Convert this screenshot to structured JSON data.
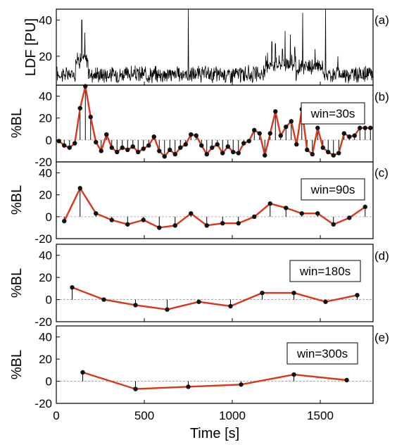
{
  "x_axis": {
    "label": "Time [s]",
    "range": [
      0,
      1800
    ],
    "ticks": [
      0,
      500,
      1000,
      1500
    ],
    "tick_labels": [
      "0",
      "500",
      "1000",
      "1500"
    ]
  },
  "colors": {
    "line": "#d9361a",
    "marker": "#111111",
    "trace": "#000000",
    "zero_line": "#999999"
  },
  "chart_data": [
    {
      "panel": "(a)",
      "type": "line",
      "ylabel": "LDF [PU]",
      "ylim": [
        4,
        46
      ],
      "yticks": [
        20,
        40
      ],
      "baseline_mean": 10,
      "noise_amplitude": 3.5,
      "dense_regions": [
        {
          "x_range": [
            110,
            180
          ],
          "level": 18
        },
        {
          "x_range": [
            1190,
            1360
          ],
          "level": 16
        },
        {
          "x_range": [
            1380,
            1520
          ],
          "level": 14
        }
      ],
      "spikes": [
        {
          "x": 145,
          "y": 40
        },
        {
          "x": 162,
          "y": 33
        },
        {
          "x": 750,
          "y": 46
        },
        {
          "x": 1200,
          "y": 22
        },
        {
          "x": 1225,
          "y": 28
        },
        {
          "x": 1245,
          "y": 27
        },
        {
          "x": 1285,
          "y": 24
        },
        {
          "x": 1300,
          "y": 34
        },
        {
          "x": 1330,
          "y": 32
        },
        {
          "x": 1355,
          "y": 25
        },
        {
          "x": 1400,
          "y": 44
        },
        {
          "x": 1470,
          "y": 24
        },
        {
          "x": 1530,
          "y": 46
        },
        {
          "x": 1600,
          "y": 20
        }
      ]
    },
    {
      "panel": "(b)",
      "type": "line",
      "window": "win=30s",
      "ylabel": "%BL",
      "ylim": [
        -20,
        50
      ],
      "yticks": [
        -20,
        0,
        20,
        40
      ],
      "x": [
        15,
        45,
        75,
        105,
        135,
        165,
        195,
        225,
        255,
        285,
        315,
        345,
        375,
        405,
        435,
        465,
        495,
        525,
        555,
        585,
        615,
        645,
        675,
        705,
        735,
        765,
        795,
        825,
        855,
        885,
        915,
        945,
        975,
        1005,
        1035,
        1065,
        1095,
        1125,
        1155,
        1185,
        1215,
        1245,
        1275,
        1305,
        1335,
        1365,
        1395,
        1425,
        1455,
        1485,
        1515,
        1545,
        1575,
        1605,
        1635,
        1665,
        1695,
        1725,
        1755,
        1785
      ],
      "values": [
        -1,
        -5,
        -7,
        -3,
        29,
        49,
        21,
        -2,
        -10,
        5,
        -7,
        -11,
        -7,
        -9,
        -6,
        -11,
        -8,
        -5,
        3,
        -10,
        -15,
        -9,
        -13,
        -7,
        -4,
        5,
        4,
        -5,
        -13,
        -7,
        -4,
        -12,
        -6,
        -11,
        -12,
        -3,
        -1,
        9,
        6,
        -14,
        6,
        26,
        4,
        12,
        17,
        -4,
        28,
        -9,
        -13,
        11,
        -7,
        -11,
        -14,
        -12,
        6,
        3,
        4,
        11,
        11,
        11
      ]
    },
    {
      "panel": "(c)",
      "type": "line",
      "window": "win=90s",
      "ylabel": "%BL",
      "ylim": [
        -20,
        50
      ],
      "yticks": [
        -20,
        0,
        20,
        40
      ],
      "x": [
        45,
        135,
        225,
        315,
        405,
        495,
        585,
        675,
        765,
        855,
        945,
        1035,
        1125,
        1215,
        1305,
        1395,
        1485,
        1575,
        1665,
        1755
      ],
      "values": [
        -4,
        26,
        3,
        -3,
        -7,
        -3,
        -10,
        -8,
        3,
        -8,
        -6,
        -6,
        0,
        12,
        8,
        3,
        3,
        -7,
        -1,
        9
      ]
    },
    {
      "panel": "(d)",
      "type": "line",
      "window": "win=180s",
      "ylabel": "%BL",
      "ylim": [
        -20,
        50
      ],
      "yticks": [
        -20,
        0,
        20,
        40
      ],
      "x": [
        90,
        270,
        450,
        630,
        810,
        990,
        1170,
        1350,
        1530,
        1710
      ],
      "values": [
        11,
        0,
        -5,
        -9,
        -2,
        -6,
        6,
        6,
        -2,
        4
      ]
    },
    {
      "panel": "(e)",
      "type": "line",
      "window": "win=300s",
      "ylabel": "%BL",
      "ylim": [
        -20,
        50
      ],
      "yticks": [
        -20,
        0,
        20,
        40
      ],
      "x": [
        150,
        450,
        750,
        1050,
        1350,
        1650
      ],
      "values": [
        8,
        -7,
        -5,
        -3,
        6,
        1
      ]
    }
  ]
}
